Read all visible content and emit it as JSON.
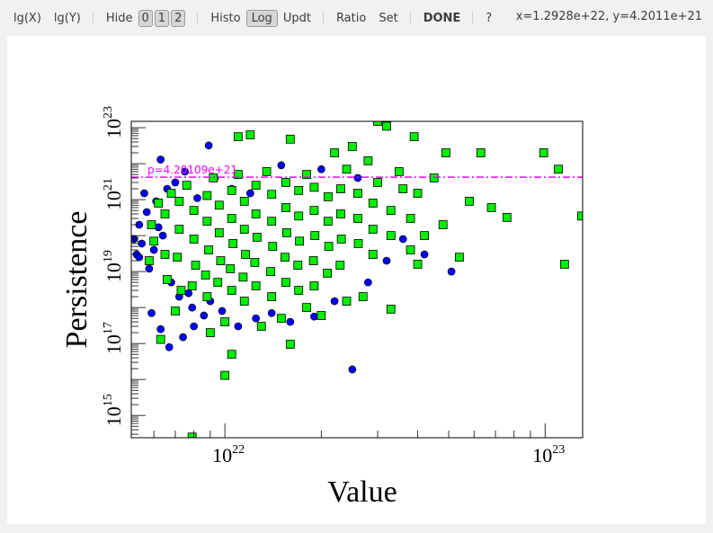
{
  "toolbar": {
    "lgx": "lg(X)",
    "lgy": "lg(Y)",
    "hide": "Hide",
    "hide_buttons": [
      "0",
      "1",
      "2"
    ],
    "histo": "Histo",
    "log": "Log",
    "updt": "Updt",
    "ratio": "Ratio",
    "set": "Set",
    "done": "DONE",
    "help": "?",
    "coords": "x=1.2928e+22, y=4.2011e+21"
  },
  "chart_data": {
    "type": "scatter",
    "xlabel": "Value",
    "ylabel": "Persistence",
    "xscale": "log",
    "yscale": "log",
    "xlim": [
      5.1e+21,
      1.31e+23
    ],
    "ylim": [
      240000000000000.0,
      1.5e+23
    ],
    "xticks": [
      {
        "label": "10",
        "exp": "22",
        "value": 1e+22
      },
      {
        "label": "10",
        "exp": "23",
        "value": 1e+23
      }
    ],
    "yticks": [
      {
        "label": "10",
        "exp": "15",
        "value": 1000000000000000.0
      },
      {
        "label": "10",
        "exp": "17",
        "value": 1e+17
      },
      {
        "label": "10",
        "exp": "19",
        "value": 1e+19
      },
      {
        "label": "10",
        "exp": "21",
        "value": 1e+21
      },
      {
        "label": "10",
        "exp": "23",
        "value": 1e+23
      }
    ],
    "threshold": {
      "value": 4.20109e+21,
      "label": "p=4.20109e+21",
      "color": "#ff00ff"
    },
    "colors": {
      "blue": "#0000ff",
      "green": "#00ee00"
    },
    "series": [
      {
        "marker": "circle",
        "color": "#0000ff",
        "points": [
          [
            8.9e+21,
            3.2e+22
          ],
          [
            6.3e+21,
            1.3e+22
          ],
          [
            5.6e+21,
            1.5e+21
          ],
          [
            5.2e+21,
            8e+19
          ],
          [
            5.3e+21,
            3e+19
          ],
          [
            5.5e+21,
            6e+19
          ],
          [
            5.8e+21,
            1.2e+19
          ],
          [
            6e+21,
            4e+19
          ],
          [
            5.4e+21,
            2e+20
          ],
          [
            6.1e+21,
            9e+20
          ],
          [
            6.6e+21,
            2e+21
          ],
          [
            7e+21,
            3e+21
          ],
          [
            7.5e+21,
            6e+21
          ],
          [
            8.2e+21,
            1.1e+21
          ],
          [
            9.3e+21,
            4e+21
          ],
          [
            6.8e+21,
            5e+18
          ],
          [
            7.2e+21,
            2e+18
          ],
          [
            7.9e+21,
            1e+18
          ],
          [
            8.6e+21,
            6e+17
          ],
          [
            9.8e+21,
            8e+17
          ],
          [
            1.1e+22,
            3e+17
          ],
          [
            1.25e+22,
            5e+17
          ],
          [
            1.4e+22,
            7e+17
          ],
          [
            1.6e+22,
            4e+17
          ],
          [
            1.9e+22,
            5.6e+17
          ],
          [
            2.2e+22,
            1.5e+18
          ],
          [
            2.5e+22,
            1.9e+16
          ],
          [
            6.7e+21,
            7.9e+16
          ],
          [
            6.3e+21,
            2.5e+17
          ],
          [
            7.4e+21,
            1.5e+17
          ],
          [
            8e+21,
            3e+17
          ],
          [
            5.9e+21,
            7e+17
          ],
          [
            2.8e+22,
            5e+18
          ],
          [
            3.2e+22,
            2e+19
          ],
          [
            3.6e+22,
            8e+19
          ],
          [
            4.2e+22,
            3e+19
          ],
          [
            5.4e+21,
            2.5e+19
          ],
          [
            5.7e+21,
            4.5e+20
          ],
          [
            6.2e+21,
            1.7e+20
          ],
          [
            1.2e+22,
            1.5e+21
          ],
          [
            1.5e+22,
            9e+21
          ],
          [
            2e+22,
            7e+21
          ],
          [
            2.6e+22,
            4e+21
          ],
          [
            5.1e+22,
            1e+19
          ],
          [
            1.05e+22,
            2e+21
          ],
          [
            6.4e+21,
            1e+20
          ],
          [
            7.7e+21,
            2.5e+18
          ],
          [
            9e+21,
            1.5e+18
          ]
        ]
      },
      {
        "marker": "square",
        "color": "#00ee00",
        "points": [
          [
            1.1e+22,
            5.6e+22
          ],
          [
            1.2e+22,
            6.3e+22
          ],
          [
            1.6e+22,
            4.8e+22
          ],
          [
            3e+22,
            1.5e+23
          ],
          [
            3.2e+22,
            1.1e+23
          ],
          [
            3.9e+22,
            5.6e+22
          ],
          [
            4.9e+22,
            2e+22
          ],
          [
            6.3e+22,
            2e+22
          ],
          [
            9.9e+22,
            2e+22
          ],
          [
            1.1e+23,
            7e+21
          ],
          [
            1.3e+23,
            3.5e+20
          ],
          [
            1.15e+23,
            1.6e+19
          ],
          [
            7.6e+22,
            3.2e+20
          ],
          [
            5.4e+22,
            2.5e+19
          ],
          [
            4e+22,
            1.6e+19
          ],
          [
            3.3e+22,
            9e+17
          ],
          [
            1.6e+22,
            9.5e+16
          ],
          [
            1.05e+22,
            5e+16
          ],
          [
            1e+22,
            1.3e+16
          ],
          [
            7.9e+21,
            250000000000000.0
          ],
          [
            6.3e+21,
            1.3e+17
          ],
          [
            2.2e+22,
            2e+22
          ],
          [
            2.5e+22,
            3e+22
          ],
          [
            2.8e+22,
            1.2e+22
          ],
          [
            3.5e+22,
            6e+21
          ],
          [
            4.5e+22,
            4e+21
          ],
          [
            5.8e+22,
            9e+20
          ],
          [
            6.8e+22,
            6e+20
          ],
          [
            4.8e+22,
            2e+20
          ],
          [
            4.2e+22,
            1e+20
          ],
          [
            3.8e+22,
            4e+19
          ],
          [
            2.4e+22,
            1.5e+18
          ],
          [
            2e+22,
            6e+17
          ],
          [
            1.3e+22,
            3e+17
          ],
          [
            9e+21,
            2e+17
          ],
          [
            5.8e+21,
            2e+19
          ],
          [
            5.9e+21,
            2e+20
          ],
          [
            6e+21,
            7e+19
          ],
          [
            6.5e+21,
            4e+20
          ],
          [
            6.5e+21,
            3e+19
          ],
          [
            6.6e+21,
            6e+18
          ],
          [
            7.2e+21,
            9e+20
          ],
          [
            7.2e+21,
            1.5e+20
          ],
          [
            7.1e+21,
            2.5e+19
          ],
          [
            7.3e+21,
            3e+18
          ],
          [
            8e+21,
            5e+20
          ],
          [
            8e+21,
            8e+19
          ],
          [
            8.1e+21,
            1.5e+19
          ],
          [
            7.9e+21,
            4e+18
          ],
          [
            8.8e+21,
            1.3e+21
          ],
          [
            8.8e+21,
            2.5e+20
          ],
          [
            8.9e+21,
            4e+19
          ],
          [
            8.7e+21,
            8e+18
          ],
          [
            8.8e+21,
            2e+18
          ],
          [
            9.6e+21,
            7e+20
          ],
          [
            9.6e+21,
            1.2e+20
          ],
          [
            9.7e+21,
            2e+19
          ],
          [
            9.5e+21,
            5e+18
          ],
          [
            1.05e+22,
            1.8e+21
          ],
          [
            1.05e+22,
            3e+20
          ],
          [
            1.06e+22,
            6e+19
          ],
          [
            1.04e+22,
            1.2e+19
          ],
          [
            1.05e+22,
            3e+18
          ],
          [
            1.15e+22,
            9e+20
          ],
          [
            1.15e+22,
            1.5e+20
          ],
          [
            1.16e+22,
            3e+19
          ],
          [
            1.14e+22,
            7e+18
          ],
          [
            1.15e+22,
            1.5e+18
          ],
          [
            1.25e+22,
            2.5e+21
          ],
          [
            1.25e+22,
            4e+20
          ],
          [
            1.26e+22,
            9e+19
          ],
          [
            1.24e+22,
            1.8e+19
          ],
          [
            1.25e+22,
            4e+18
          ],
          [
            1.4e+22,
            1.4e+21
          ],
          [
            1.4e+22,
            2.5e+20
          ],
          [
            1.41e+22,
            5e+19
          ],
          [
            1.39e+22,
            1e+19
          ],
          [
            1.4e+22,
            2e+18
          ],
          [
            1.55e+22,
            3e+21
          ],
          [
            1.55e+22,
            6e+20
          ],
          [
            1.56e+22,
            1.2e+20
          ],
          [
            1.54e+22,
            2.5e+19
          ],
          [
            1.55e+22,
            5e+18
          ],
          [
            1.7e+22,
            1.8e+21
          ],
          [
            1.7e+22,
            3.5e+20
          ],
          [
            1.71e+22,
            7e+19
          ],
          [
            1.69e+22,
            1.5e+19
          ],
          [
            1.7e+22,
            3e+18
          ],
          [
            1.9e+22,
            2.2e+21
          ],
          [
            1.9e+22,
            5e+20
          ],
          [
            1.91e+22,
            1e+20
          ],
          [
            1.89e+22,
            2e+19
          ],
          [
            1.9e+22,
            4e+18
          ],
          [
            2.1e+22,
            1.2e+21
          ],
          [
            2.1e+22,
            2.5e+20
          ],
          [
            2.11e+22,
            5e+19
          ],
          [
            2.09e+22,
            9e+18
          ],
          [
            2.3e+22,
            2e+21
          ],
          [
            2.3e+22,
            4e+20
          ],
          [
            2.31e+22,
            8e+19
          ],
          [
            2.29e+22,
            1.5e+19
          ],
          [
            2.6e+22,
            1.5e+21
          ],
          [
            2.6e+22,
            3e+20
          ],
          [
            2.61e+22,
            6e+19
          ],
          [
            2.9e+22,
            8e+20
          ],
          [
            2.9e+22,
            1.5e+20
          ],
          [
            2.9e+22,
            3e+19
          ],
          [
            3.3e+22,
            5e+20
          ],
          [
            3.3e+22,
            1e+20
          ],
          [
            3.6e+22,
            2e+21
          ],
          [
            6.2e+21,
            8e+20
          ],
          [
            6.8e+21,
            1.5e+21
          ],
          [
            7.6e+21,
            2.5e+21
          ],
          [
            9.2e+21,
            4e+21
          ],
          [
            1.1e+22,
            5e+21
          ],
          [
            1.35e+22,
            6e+21
          ],
          [
            1.8e+22,
            5e+21
          ],
          [
            2.4e+22,
            7e+21
          ],
          [
            3e+22,
            3e+21
          ],
          [
            4e+22,
            1.5e+21
          ],
          [
            3.8e+22,
            3e+20
          ],
          [
            1e+22,
            4e+17
          ],
          [
            1.5e+22,
            5e+17
          ],
          [
            1.8e+22,
            1e+18
          ],
          [
            2.7e+22,
            2e+18
          ],
          [
            7e+21,
            8e+17
          ]
        ]
      }
    ]
  }
}
